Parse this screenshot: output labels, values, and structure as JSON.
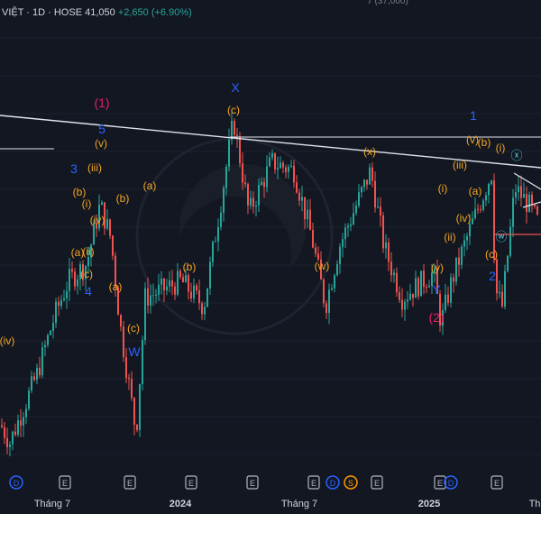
{
  "header": {
    "symbol_text": "VIỆT · 1D · HOSE",
    "price": "41,050",
    "change": "+2,650 (+6.90%)",
    "top_fragment": "7 (37,000)"
  },
  "chart_data": {
    "type": "candlestick",
    "ohlc_y_range": [
      34000,
      59500
    ],
    "x_labels": [
      "Tháng 7",
      "2024",
      "Tháng 7",
      "2025",
      "Th"
    ],
    "event_markers": [
      "D",
      "E",
      "E",
      "E",
      "E",
      "E",
      "D",
      "S",
      "E",
      "E",
      "D",
      "E"
    ],
    "trendlines": [
      {
        "name": "descending resistance"
      },
      {
        "name": "horizontal resistance"
      },
      {
        "name": "horizontal support"
      },
      {
        "name": "triangle upper"
      },
      {
        "name": "triangle lower"
      }
    ],
    "wave_labels": {
      "orange": [
        "(iv)",
        "(v)",
        "(b)",
        "(i)",
        "(a)",
        "(c)",
        "(iii)",
        "(b)",
        "(iv)",
        "(ii)",
        "(a)",
        "(c)",
        "(a)",
        "(b)",
        "(c)",
        "(w)",
        "(x)",
        "(y)",
        "(i)",
        "(ii)",
        "(iii)",
        "(iv)",
        "(a)",
        "(c)",
        "(v)",
        "(b)",
        "(i)"
      ],
      "blue": [
        "3",
        "4",
        "5",
        "W",
        "X",
        "Y",
        "1",
        "2"
      ],
      "pink": [
        "(1)",
        "(2)"
      ],
      "cyan": [
        "ⓧ",
        "ⓦ"
      ]
    },
    "colors": {
      "background": "#131722",
      "up": "#26a69a",
      "down": "#ef5350",
      "orange": "#f5a623",
      "blue": "#2962ff",
      "pink": "#e91e63",
      "cyan": "#4dd0e1",
      "line": "#e0e3eb"
    }
  }
}
